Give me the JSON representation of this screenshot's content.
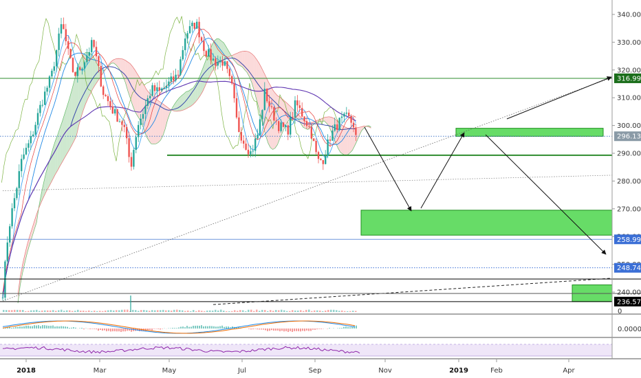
{
  "chart_data": {
    "type": "candlestick",
    "title": "",
    "y_axis": {
      "min": 236,
      "max": 344,
      "ticks": [
        "340.000",
        "330.000",
        "320.000",
        "310.000",
        "300.000",
        "290.000",
        "280.000",
        "270.000",
        "260.000",
        "250.000",
        "240.000"
      ],
      "tick_values": [
        340,
        330,
        320,
        310,
        300,
        290,
        280,
        270,
        260,
        250,
        240
      ]
    },
    "x_axis": {
      "labels": [
        {
          "text": "2018",
          "bold": true
        },
        {
          "text": "Mar",
          "bold": false
        },
        {
          "text": "May",
          "bold": false
        },
        {
          "text": "Jul",
          "bold": false
        },
        {
          "text": "Sep",
          "bold": false
        },
        {
          "text": "Nov",
          "bold": false
        },
        {
          "text": "2019",
          "bold": true
        },
        {
          "text": "Feb",
          "bold": false
        },
        {
          "text": "Apr",
          "bold": false
        }
      ]
    },
    "price_badges": [
      {
        "text": "316.995",
        "value": 316.995,
        "color": "#1b6e1b"
      },
      {
        "text": "296.130",
        "value": 296.13,
        "color": "#8a9aa6"
      },
      {
        "text": "258.995",
        "value": 258.995,
        "color": "#3b6fd6"
      },
      {
        "text": "248.741",
        "value": 248.741,
        "color": "#3b6fd6"
      },
      {
        "text": "236.579",
        "value": 236.579,
        "color": "#000000"
      }
    ],
    "horizontal_lines": [
      {
        "value": 316.995,
        "color": "#2e8b2e",
        "style": "solid"
      },
      {
        "value": 296.13,
        "color": "#4a7cc9",
        "style": "dotted"
      },
      {
        "value": 258.995,
        "color": "#6f96dc",
        "style": "solid"
      },
      {
        "value": 248.741,
        "color": "#3b6fd6",
        "style": "dotted"
      },
      {
        "value": 236.579,
        "color": "#000000",
        "style": "solid"
      }
    ],
    "support_line": {
      "value": 289.3,
      "color": "#2e8b2e"
    },
    "target_zones": [
      {
        "from": 296.1,
        "to": 299.0,
        "color": "#4cd64c"
      },
      {
        "from": 260.5,
        "to": 269.5,
        "color": "#4cd64c"
      },
      {
        "from": 236.6,
        "to": 242.6,
        "color": "#4cd64c"
      }
    ],
    "macd_axis_label": "0.0000",
    "volume_axis_label": "0",
    "colors": {
      "up": "#26a69a",
      "down": "#ef5350",
      "cloud_green": "#a5d6a7",
      "cloud_red": "#f8bbbb",
      "zone": "#4cd64c"
    }
  }
}
